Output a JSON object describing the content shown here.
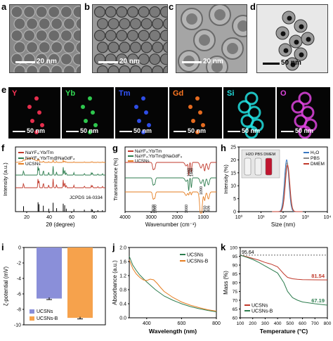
{
  "figure": {
    "panel_labels": [
      "a",
      "b",
      "c",
      "d",
      "e",
      "f",
      "g",
      "h",
      "i",
      "j",
      "k"
    ],
    "tem": [
      {
        "id": "a",
        "scale": "20 nm"
      },
      {
        "id": "b",
        "scale": "20 nm"
      },
      {
        "id": "c",
        "scale": "20 nm"
      },
      {
        "id": "d",
        "scale": "50 nm"
      }
    ],
    "eds": [
      {
        "el": "Y",
        "color": "#ff3355",
        "scale": "50 nm"
      },
      {
        "el": "Yb",
        "color": "#33dd55",
        "scale": "50 nm"
      },
      {
        "el": "Tm",
        "color": "#3355ff",
        "scale": "50 nm"
      },
      {
        "el": "Gd",
        "color": "#ff7722",
        "scale": "50 nm"
      },
      {
        "el": "Si",
        "color": "#22e0e0",
        "scale": "50 nm"
      },
      {
        "el": "O",
        "color": "#dd44dd",
        "scale": "50 nm"
      }
    ]
  },
  "chart_data": [
    {
      "panel": "f",
      "type": "line",
      "xlabel": "2θ (degree)",
      "ylabel": "Intensity (a.u.)",
      "xlim": [
        10,
        90
      ],
      "xticks": [
        "20",
        "40",
        "60",
        "80"
      ],
      "series": [
        {
          "name": "NaYF₄:Yb/Tm",
          "color": "#c0392b"
        },
        {
          "name": "NaYF₄:Yb/Tm@NaGdF₄",
          "color": "#2e7d4f"
        },
        {
          "name": "UCSNs",
          "color": "#e67e22"
        }
      ],
      "reference": "JCPDS 16-0334",
      "peaks": [
        17.2,
        30.1,
        30.9,
        34.8,
        39.6,
        43.5,
        46.6,
        52.5,
        53.8,
        55.2,
        62.0,
        71.3,
        77.6,
        78.5,
        83.3,
        87.4
      ],
      "ref_heights": [
        0.55,
        0.95,
        0.75,
        0.6,
        0.3,
        0.9,
        0.35,
        0.8,
        0.65,
        0.3,
        0.25,
        0.2,
        0.25,
        0.2,
        0.15,
        0.15
      ]
    },
    {
      "panel": "g",
      "type": "line",
      "xlabel": "Wavenumber (cm⁻¹)",
      "ylabel": "Transmittance (%)",
      "xlim": [
        4000,
        500
      ],
      "xticks": [
        "4000",
        "3000",
        "2000",
        "1000"
      ],
      "series": [
        {
          "name": "NaYF₄:Yb/Tm",
          "color": "#c0392b"
        },
        {
          "name": "NaYF₄:Yb/Tm@NaGdF₄",
          "color": "#2e7d4f"
        },
        {
          "name": "UCSNs",
          "color": "#e67e22"
        }
      ],
      "annotations": [
        "2920",
        "2860",
        "1560",
        "1460",
        "1660",
        "1090",
        "950",
        "806"
      ]
    },
    {
      "panel": "h",
      "type": "line",
      "xlabel": "Size (nm)",
      "ylabel": "Intensity (%)",
      "ylim": [
        0,
        25
      ],
      "yticks": [
        "0",
        "5",
        "10",
        "15",
        "20",
        "25"
      ],
      "xticks": [
        "10⁰",
        "10¹",
        "10²",
        "10³",
        "10⁴"
      ],
      "inset_labels": "H2O PBS DMEM",
      "series": [
        {
          "name": "H₂O",
          "color": "#3a78c2",
          "peak": 20
        },
        {
          "name": "PBS",
          "color": "#888888",
          "peak": 19
        },
        {
          "name": "DMEM",
          "color": "#c0392b",
          "peak": 18
        }
      ]
    },
    {
      "panel": "i",
      "type": "bar",
      "ylabel": "ζ-potential (mV)",
      "ylim": [
        -10,
        0
      ],
      "yticks": [
        "0",
        "-2",
        "-4",
        "-6",
        "-8",
        "-10"
      ],
      "categories": [
        "UCSNs",
        "UCSNs-B"
      ],
      "values": [
        -6.6,
        -9.1
      ],
      "colors": [
        "#8a8fd9",
        "#f6a24c"
      ]
    },
    {
      "panel": "j",
      "type": "line",
      "xlabel": "Wavelength (nm)",
      "ylabel": "Absorbance (a.u.)",
      "xlim": [
        300,
        800
      ],
      "ylim": [
        0,
        2.0
      ],
      "xticks": [
        "400",
        "600",
        "800"
      ],
      "yticks": [
        "0.0",
        "0.4",
        "0.8",
        "1.2",
        "1.6",
        "2.0"
      ],
      "series": [
        {
          "name": "UCSNs",
          "color": "#2e7d4f",
          "x": [
            300,
            320,
            340,
            360,
            380,
            400,
            450,
            500,
            550,
            600,
            650,
            700,
            750,
            800
          ],
          "y": [
            1.75,
            1.5,
            1.35,
            1.22,
            1.12,
            1.02,
            0.8,
            0.62,
            0.5,
            0.4,
            0.32,
            0.26,
            0.21,
            0.17
          ]
        },
        {
          "name": "UCSNs-B",
          "color": "#e67e22",
          "x": [
            300,
            320,
            340,
            360,
            380,
            400,
            420,
            440,
            460,
            480,
            500,
            550,
            600,
            650,
            700,
            750,
            800
          ],
          "y": [
            1.65,
            1.4,
            1.25,
            1.15,
            1.08,
            1.06,
            1.1,
            1.08,
            0.98,
            0.86,
            0.75,
            0.58,
            0.45,
            0.36,
            0.29,
            0.23,
            0.19
          ]
        }
      ]
    },
    {
      "panel": "k",
      "type": "line",
      "xlabel": "Temperature (°C)",
      "ylabel": "Mass (%)",
      "xlim": [
        100,
        800
      ],
      "ylim": [
        60,
        100
      ],
      "xticks": [
        "100",
        "200",
        "300",
        "400",
        "500",
        "600",
        "700",
        "800"
      ],
      "yticks": [
        "60",
        "65",
        "70",
        "75",
        "80",
        "85",
        "90",
        "95",
        "100"
      ],
      "annotations": {
        "start": "95.64",
        "ucsns_end": "81.54",
        "ucsnsb_end": "67.19"
      },
      "series": [
        {
          "name": "UCSNs",
          "color": "#c0392b",
          "x": [
            100,
            150,
            200,
            250,
            300,
            350,
            400,
            450,
            480,
            520,
            560,
            600,
            700,
            800
          ],
          "y": [
            95.6,
            94.8,
            93.8,
            92.8,
            91.5,
            90.5,
            89.0,
            85.0,
            83.0,
            82.2,
            81.9,
            81.7,
            81.6,
            81.54
          ]
        },
        {
          "name": "UCSNs-B",
          "color": "#2e7d4f",
          "x": [
            100,
            150,
            200,
            250,
            300,
            350,
            400,
            450,
            480,
            520,
            560,
            600,
            700,
            800
          ],
          "y": [
            95.6,
            94.5,
            93.2,
            91.5,
            89.5,
            87.5,
            85.5,
            80.0,
            75.0,
            71.5,
            70.0,
            69.0,
            68.0,
            67.19
          ]
        }
      ]
    }
  ]
}
